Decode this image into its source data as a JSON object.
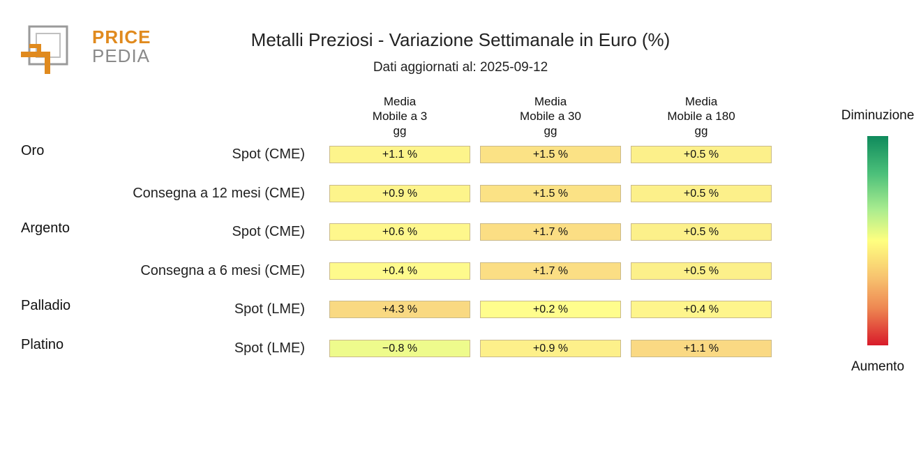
{
  "logo": {
    "line1": "PRICE",
    "line2": "PEDIA"
  },
  "title": "Metalli Preziosi - Variazione Settimanale in Euro (%)",
  "subtitle": "Dati aggiornati al: 2025-09-12",
  "legend": {
    "top": "Diminuzione",
    "bottom": "Aumento"
  },
  "chart_data": {
    "type": "heatmap",
    "title": "Metalli Preziosi - Variazione Settimanale in Euro (%)",
    "columns": [
      {
        "lines": [
          "Media",
          "Mobile a 3",
          "gg"
        ]
      },
      {
        "lines": [
          "Media",
          "Mobile a 30",
          "gg"
        ]
      },
      {
        "lines": [
          "Media",
          "Mobile a 180",
          "gg"
        ]
      }
    ],
    "rows": [
      {
        "group": "Oro",
        "label": "Spot (CME)",
        "values": [
          "+1.1 %",
          "+1.5 %",
          "+0.5 %"
        ],
        "colors": [
          "#fdf48b",
          "#fbe285",
          "#fcf08a"
        ]
      },
      {
        "group": "",
        "label": "Consegna a 12 mesi (CME)",
        "values": [
          "+0.9 %",
          "+1.5 %",
          "+0.5 %"
        ],
        "colors": [
          "#fdf48b",
          "#fbe285",
          "#fcf08a"
        ]
      },
      {
        "group": "Argento",
        "label": "Spot (CME)",
        "values": [
          "+0.6 %",
          "+1.7 %",
          "+0.5 %"
        ],
        "colors": [
          "#fef78c",
          "#fbde84",
          "#fcf08a"
        ]
      },
      {
        "group": "",
        "label": "Consegna a 6 mesi (CME)",
        "values": [
          "+0.4 %",
          "+1.7 %",
          "+0.5 %"
        ],
        "colors": [
          "#fefa8c",
          "#fbde84",
          "#fcf08a"
        ]
      },
      {
        "group": "Palladio",
        "label": "Spot (LME)",
        "values": [
          "+4.3 %",
          "+0.2 %",
          "+0.4 %"
        ],
        "colors": [
          "#f9d982",
          "#fffd8d",
          "#fef58c"
        ]
      },
      {
        "group": "Platino",
        "label": "Spot (LME)",
        "values": [
          "−0.8 %",
          "+0.9 %",
          "+1.1 %"
        ],
        "colors": [
          "#eefb8c",
          "#fdf08a",
          "#fad983"
        ]
      }
    ],
    "colorscale": {
      "low": "#0f8a5c",
      "mid": "#ffff80",
      "high": "#d81b2a"
    }
  }
}
